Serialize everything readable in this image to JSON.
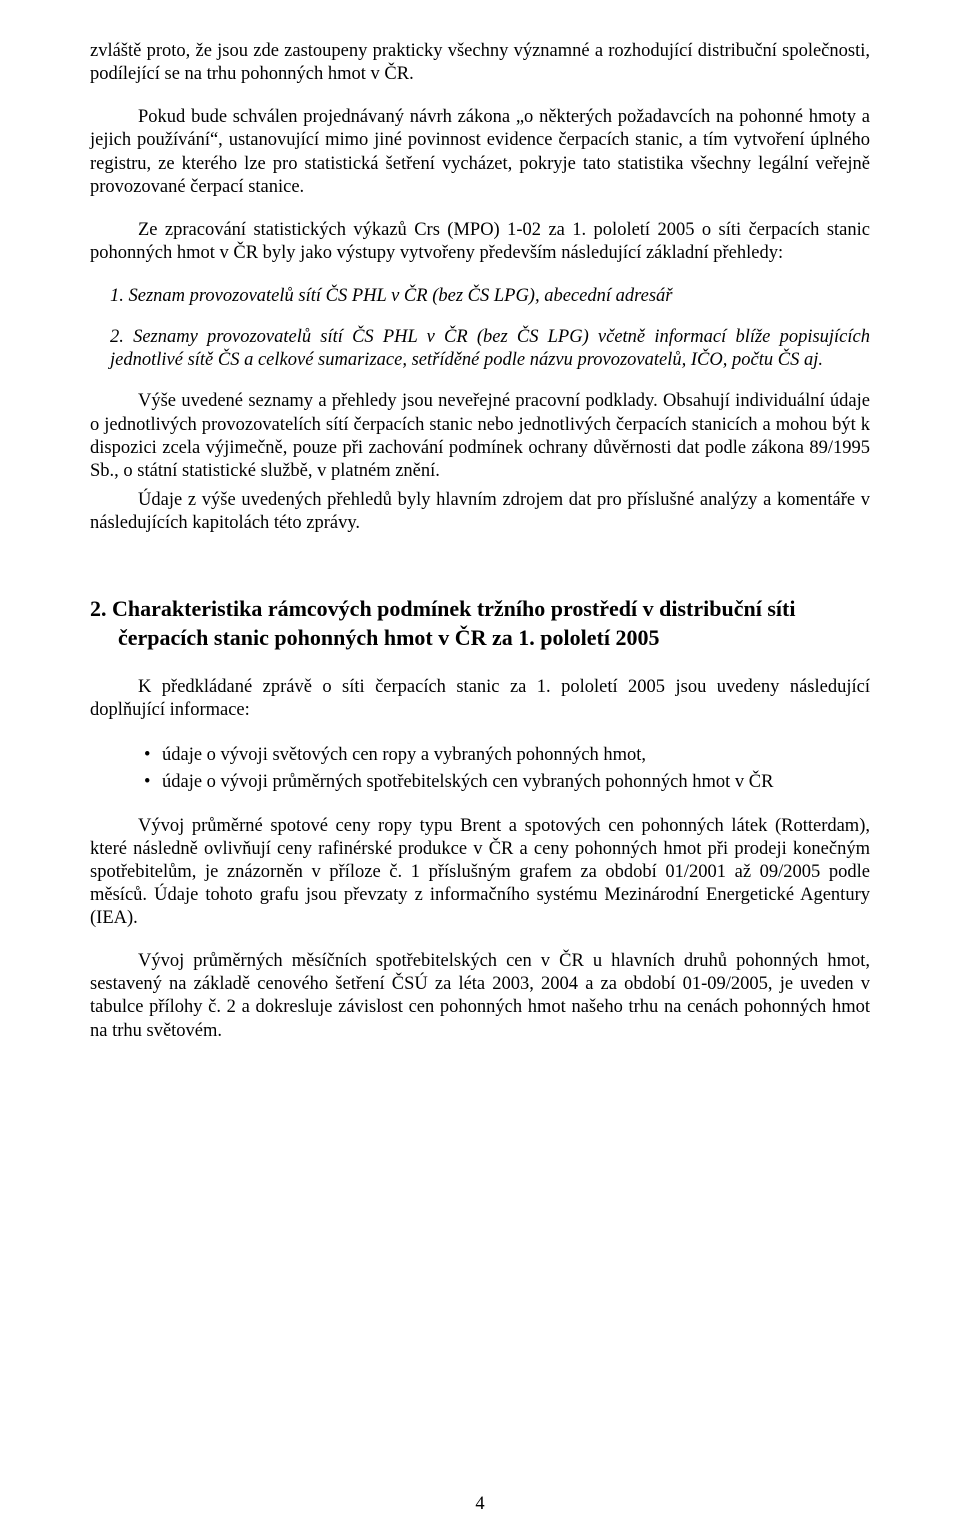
{
  "p_intro": "zvláště proto, že jsou zde zastoupeny prakticky všechny významné a rozhodující distribuční společnosti, podílející se na trhu pohonných hmot v ČR.",
  "p_law": "Pokud bude schválen projednávaný návrh zákona „o některých požadavcích na pohonné hmoty a jejich používání“, ustanovující mimo jiné povinnost evidence čerpacích stanic, a tím vytvoření úplného registru, ze kterého lze pro statistická šetření vycházet, pokryje tato statistika všechny legální veřejně provozované čerpací stanice.",
  "p_stats": "Ze zpracování statistických výkazů Crs (MPO) 1-02 za 1. pololetí 2005 o síti čerpacích stanic pohonných hmot v ČR byly jako výstupy vytvořeny především následující základní přehledy:",
  "list1_num": "1.",
  "list1_text": "Seznam provozovatelů sítí ČS PHL v ČR (bez ČS LPG), abecední adresář",
  "list2_num": "2.",
  "list2_text": "Seznamy provozovatelů sítí ČS PHL v ČR (bez ČS LPG) včetně informací blíže popisujících jednotlivé sítě ČS a celkové sumarizace, setříděné podle názvu provozovatelů, IČO, počtu ČS aj.",
  "p_above": "Výše uvedené seznamy a přehledy jsou neveřejné pracovní podklady. Obsahují individuální údaje o jednotlivých provozovatelích sítí čerpacích stanic nebo jednotlivých čerpacích stanicích a mohou být k dispozici zcela výjimečně, pouze při zachování podmínek ochrany důvěrnosti dat podle zákona 89/1995 Sb., o státní statistické službě, v platném znění.",
  "p_source": "Údaje z výše uvedených přehledů byly hlavním zdrojem dat pro příslušné analýzy a komentáře v následujících kapitolách této zprávy.",
  "heading_num": "2.",
  "heading_l1": "Charakteristika rámcových podmínek tržního prostředí v distribuční síti",
  "heading_l2": "čerpacích stanic pohonných hmot v ČR za 1. pololetí 2005",
  "p_report": "K předkládané zprávě o síti čerpacích stanic za 1. pololetí 2005 jsou uvedeny následující doplňující informace:",
  "b1": "údaje o vývoji světových cen ropy a vybraných pohonných hmot,",
  "b2": "údaje o vývoji průměrných spotřebitelských cen vybraných pohonných hmot v ČR",
  "p_brent": "Vývoj průměrné spotové ceny ropy typu Brent a spotových cen pohonných látek (Rotterdam), které následně ovlivňují ceny rafinérské produkce v ČR a ceny pohonných hmot při prodeji konečným spotřebitelům, je znázorněn v příloze č. 1 příslušným grafem za období 01/2001 až 09/2005 podle měsíců. Údaje tohoto grafu jsou převzaty z informačního systému Mezinárodní Energetické Agentury (IEA).",
  "p_monthly": "Vývoj průměrných měsíčních spotřebitelských cen v ČR u hlavních druhů pohonných hmot, sestavený na základě cenového šetření ČSÚ za léta 2003, 2004 a za období 01-09/2005, je uveden v tabulce přílohy č. 2 a dokresluje závislost cen pohonných hmot našeho trhu na cenách pohonných hmot na trhu světovém.",
  "page_number": "4"
}
